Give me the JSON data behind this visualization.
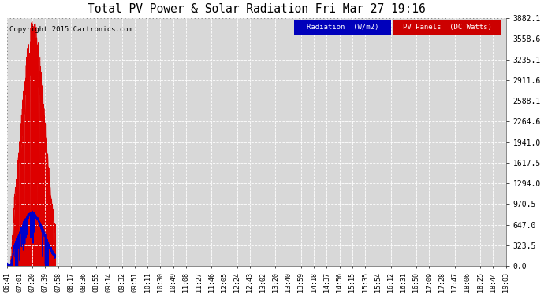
{
  "title": "Total PV Power & Solar Radiation Fri Mar 27 19:16",
  "copyright": "Copyright 2015 Cartronics.com",
  "background_color": "#ffffff",
  "plot_bg_color": "#d8d8d8",
  "grid_color": "#ffffff",
  "pv_color": "#dd0000",
  "radiation_color": "#0000cc",
  "y_max": 3882.1,
  "y_ticks": [
    0.0,
    323.5,
    647.0,
    970.5,
    1294.0,
    1617.5,
    1941.0,
    2264.6,
    2588.1,
    2911.6,
    3235.1,
    3558.6,
    3882.1
  ],
  "legend_radiation_bg": "#0000bb",
  "legend_pv_bg": "#cc0000",
  "legend_radiation_text": "Radiation  (W/m2)",
  "legend_pv_text": "PV Panels  (DC Watts)",
  "x_labels": [
    "06:41",
    "07:01",
    "07:20",
    "07:39",
    "07:58",
    "08:17",
    "08:36",
    "08:55",
    "09:14",
    "09:32",
    "09:51",
    "10:11",
    "10:30",
    "10:49",
    "11:08",
    "11:27",
    "11:46",
    "12:05",
    "12:24",
    "12:43",
    "13:02",
    "13:20",
    "13:40",
    "13:59",
    "14:18",
    "14:37",
    "14:56",
    "15:15",
    "15:35",
    "15:54",
    "16:12",
    "16:31",
    "16:50",
    "17:09",
    "17:28",
    "17:47",
    "18:06",
    "18:25",
    "18:44",
    "19:03"
  ],
  "pv_peak_index": 21,
  "pv_sigma": 9.5,
  "rad_peak_index": 20,
  "rad_sigma": 10.0,
  "rad_peak_value": 820,
  "figwidth": 6.9,
  "figheight": 3.75,
  "dpi": 100
}
